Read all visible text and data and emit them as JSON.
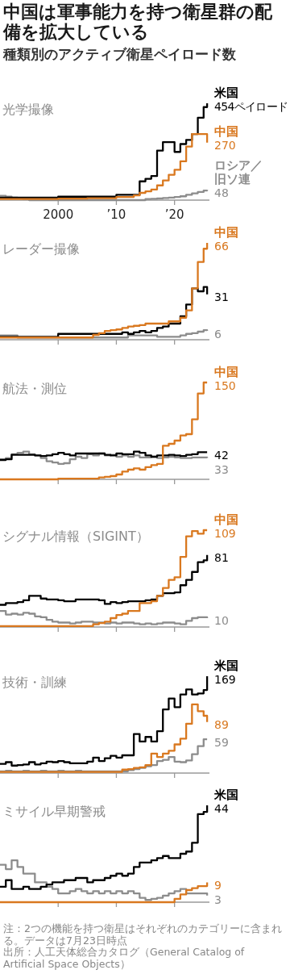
{
  "chart_data": [
    {
      "type": "other",
      "title": "中国は軍事能力を持つ衛星群の配備を拡大している",
      "subtitle": "種類別のアクティブ衛星ペイロード数"
    },
    {
      "type": "step",
      "title": "光学撮像",
      "x": [
        1990,
        1991,
        1992,
        1993,
        1994,
        1995,
        1996,
        1997,
        1998,
        1999,
        2000,
        2001,
        2002,
        2003,
        2004,
        2005,
        2006,
        2007,
        2008,
        2009,
        2010,
        2011,
        2012,
        2013,
        2014,
        2015,
        2016,
        2017,
        2018,
        2019,
        2020,
        2021,
        2022,
        2023,
        2024,
        2025,
        2025.6
      ],
      "xlim": [
        1990,
        2026
      ],
      "xticks": [
        2000,
        {
          "value": 2010,
          "label": "’10"
        },
        {
          "value": 2020,
          "label": "’20"
        }
      ],
      "tick_labels": "x",
      "series": [
        {
          "name": "ロシア／旧ソ連",
          "color": "#8c8c8c",
          "values": [
            20,
            16,
            12,
            8,
            4,
            0,
            0,
            0,
            0,
            0,
            0,
            0,
            0,
            0,
            0,
            0,
            0,
            0,
            0,
            0,
            0,
            0,
            0,
            0,
            0,
            5,
            6,
            8,
            10,
            12,
            15,
            18,
            25,
            32,
            38,
            45,
            48
          ],
          "value_labels": [
            null,
            null,
            null,
            null,
            null,
            null,
            null,
            null,
            null,
            null,
            null,
            null,
            null,
            null,
            null,
            null,
            null,
            null,
            null,
            null,
            null,
            null,
            null,
            null,
            null,
            null,
            null,
            null,
            null,
            null,
            null,
            null,
            null,
            null,
            null,
            null,
            "48"
          ]
        },
        {
          "name": "米国",
          "color": "#000000",
          "values": [
            12,
            12,
            12,
            12,
            12,
            12,
            12,
            12,
            12,
            12,
            16,
            16,
            16,
            16,
            16,
            16,
            16,
            16,
            16,
            16,
            25,
            25,
            25,
            25,
            88,
            100,
            113,
            232,
            272,
            272,
            226,
            263,
            282,
            310,
            386,
            436,
            454
          ],
          "value_labels": [
            null,
            null,
            null,
            null,
            null,
            null,
            null,
            null,
            null,
            null,
            null,
            null,
            null,
            null,
            null,
            null,
            null,
            null,
            null,
            null,
            null,
            null,
            null,
            null,
            null,
            null,
            null,
            null,
            null,
            null,
            null,
            null,
            null,
            null,
            null,
            null,
            "454ペイロード"
          ]
        },
        {
          "name": "中国",
          "color": "#d9781f",
          "values": [
            5,
            5,
            5,
            5,
            5,
            5,
            5,
            5,
            5,
            5,
            7,
            7,
            7,
            7,
            7,
            9,
            9,
            9,
            9,
            9,
            15,
            15,
            15,
            22,
            34,
            41,
            50,
            69,
            92,
            119,
            142,
            182,
            251,
            310,
            310,
            310,
            270
          ],
          "value_labels": [
            null,
            null,
            null,
            null,
            null,
            null,
            null,
            null,
            null,
            null,
            null,
            null,
            null,
            null,
            null,
            null,
            null,
            null,
            null,
            null,
            null,
            null,
            null,
            null,
            null,
            null,
            null,
            null,
            null,
            null,
            null,
            null,
            null,
            null,
            null,
            null,
            "270"
          ]
        }
      ]
    },
    {
      "type": "step",
      "title": "レーダー撮像",
      "x": [
        1990,
        1991,
        1992,
        1993,
        1994,
        1995,
        1996,
        1997,
        1998,
        1999,
        2000,
        2001,
        2002,
        2003,
        2004,
        2005,
        2006,
        2007,
        2008,
        2009,
        2010,
        2011,
        2012,
        2013,
        2014,
        2015,
        2016,
        2017,
        2018,
        2019,
        2020,
        2021,
        2022,
        2023,
        2024,
        2025,
        2025.6
      ],
      "xlim": [
        1990,
        2026
      ],
      "xticks": [
        {
          "value": 2000,
          "label": null
        },
        {
          "value": 2010,
          "label": null
        },
        {
          "value": 2020,
          "label": null
        }
      ],
      "tick_labels": false,
      "series": [
        {
          "color": "#8c8c8c",
          "values": [
            3,
            3,
            3,
            1.5,
            1.5,
            1.5,
            1.5,
            1.5,
            1.5,
            1.5,
            1.5,
            1.5,
            1.5,
            1.5,
            1.5,
            1.5,
            1.5,
            1.5,
            1.5,
            1.5,
            1.5,
            1.5,
            3,
            3,
            3,
            3,
            3,
            2,
            2,
            2,
            2,
            3,
            4,
            4.5,
            5.5,
            6.5,
            6
          ],
          "value_labels": [
            null,
            null,
            null,
            null,
            null,
            null,
            null,
            null,
            null,
            null,
            null,
            null,
            null,
            null,
            null,
            null,
            null,
            null,
            null,
            null,
            null,
            null,
            null,
            null,
            null,
            null,
            null,
            null,
            null,
            null,
            null,
            null,
            null,
            null,
            null,
            null,
            "6"
          ]
        },
        {
          "color": "#000000",
          "values": [
            2,
            2,
            2,
            2,
            2,
            2,
            2,
            2,
            2,
            2,
            4,
            4,
            4,
            4,
            4,
            4,
            4,
            4,
            4,
            4,
            4,
            5,
            4,
            5,
            6,
            5,
            6,
            8,
            9,
            11,
            11,
            16,
            24,
            35,
            33,
            36,
            31
          ],
          "value_labels": [
            null,
            null,
            null,
            null,
            null,
            null,
            null,
            null,
            null,
            null,
            null,
            null,
            null,
            null,
            null,
            null,
            null,
            null,
            null,
            null,
            null,
            null,
            null,
            null,
            null,
            null,
            null,
            null,
            null,
            null,
            null,
            null,
            null,
            null,
            null,
            null,
            "31"
          ]
        },
        {
          "name": "中国",
          "color": "#d9781f",
          "values": [
            1.5,
            1.5,
            1.5,
            1.5,
            1.5,
            1.5,
            1.5,
            1.5,
            1.5,
            1.5,
            1.5,
            1.5,
            1.5,
            1.5,
            1.5,
            1.5,
            3.3,
            4.5,
            6,
            6.5,
            7,
            8,
            9,
            9.5,
            10,
            11,
            11,
            11,
            11,
            12.5,
            12.5,
            15,
            20,
            35,
            53,
            62,
            66
          ],
          "value_labels": [
            null,
            null,
            null,
            null,
            null,
            null,
            null,
            null,
            null,
            null,
            null,
            null,
            null,
            null,
            null,
            null,
            null,
            null,
            null,
            null,
            null,
            null,
            null,
            null,
            null,
            null,
            null,
            null,
            null,
            null,
            null,
            null,
            null,
            null,
            null,
            null,
            "66"
          ]
        }
      ]
    },
    {
      "type": "step",
      "title": "航法・測位",
      "x": [
        1990,
        1991,
        1992,
        1993,
        1994,
        1995,
        1996,
        1997,
        1998,
        1999,
        2000,
        2001,
        2002,
        2003,
        2004,
        2005,
        2006,
        2007,
        2008,
        2009,
        2010,
        2011,
        2012,
        2013,
        2014,
        2015,
        2016,
        2017,
        2018,
        2019,
        2020,
        2021,
        2022,
        2023,
        2024,
        2025,
        2025.6
      ],
      "xlim": [
        1990,
        2026
      ],
      "xticks": [
        {
          "value": 2000,
          "label": null
        },
        {
          "value": 2010,
          "label": null
        },
        {
          "value": 2020,
          "label": null
        }
      ],
      "tick_labels": false,
      "series": [
        {
          "color": "#8c8c8c",
          "values": [
            31,
            33,
            39,
            41,
            43,
            39,
            37,
            33,
            28,
            26,
            24,
            25,
            31,
            35,
            33,
            39,
            37,
            40,
            37,
            38,
            35,
            37,
            35,
            37,
            34,
            34,
            35,
            33,
            34,
            35,
            34,
            33,
            33,
            34,
            34,
            34,
            33
          ],
          "value_labels": [
            null,
            null,
            null,
            null,
            null,
            null,
            null,
            null,
            null,
            null,
            null,
            null,
            null,
            null,
            null,
            null,
            null,
            null,
            null,
            null,
            null,
            null,
            null,
            null,
            null,
            null,
            null,
            null,
            null,
            null,
            null,
            null,
            null,
            null,
            null,
            null,
            "33"
          ]
        },
        {
          "color": "#000000",
          "values": [
            30,
            31,
            38,
            38,
            38,
            38,
            37,
            36,
            37,
            39,
            41,
            39,
            37,
            40,
            40,
            40,
            40,
            40,
            38,
            37,
            40,
            39,
            39,
            43,
            41,
            37,
            35,
            37,
            37,
            38,
            37,
            36,
            38,
            39,
            42,
            42,
            42
          ],
          "value_labels": [
            null,
            null,
            null,
            null,
            null,
            null,
            null,
            null,
            null,
            null,
            null,
            null,
            null,
            null,
            null,
            null,
            null,
            null,
            null,
            null,
            null,
            null,
            null,
            null,
            null,
            null,
            null,
            null,
            null,
            null,
            null,
            null,
            null,
            null,
            null,
            null,
            "42"
          ]
        },
        {
          "name": "中国",
          "color": "#d9781f",
          "values": [
            0,
            0,
            0,
            0,
            0,
            0,
            0,
            0,
            0,
            0,
            1,
            1,
            1,
            1,
            1,
            1,
            1,
            3,
            4,
            5,
            7.5,
            12,
            15,
            17,
            15,
            19,
            22,
            24,
            52,
            55,
            60,
            68,
            70,
            93,
            133,
            150,
            150
          ],
          "value_labels": [
            null,
            null,
            null,
            null,
            null,
            null,
            null,
            null,
            null,
            null,
            null,
            null,
            null,
            null,
            null,
            null,
            null,
            null,
            null,
            null,
            null,
            null,
            null,
            null,
            null,
            null,
            null,
            null,
            null,
            null,
            null,
            null,
            null,
            null,
            null,
            null,
            "150"
          ]
        }
      ]
    },
    {
      "type": "step",
      "title": "シグナル情報（SIGINT）",
      "x": [
        1990,
        1991,
        1992,
        1993,
        1994,
        1995,
        1996,
        1997,
        1998,
        1999,
        2000,
        2001,
        2002,
        2003,
        2004,
        2005,
        2006,
        2007,
        2008,
        2009,
        2010,
        2011,
        2012,
        2013,
        2014,
        2015,
        2016,
        2017,
        2018,
        2019,
        2020,
        2021,
        2022,
        2023,
        2024,
        2025,
        2025.6
      ],
      "xlim": [
        1990,
        2026
      ],
      "xticks": [
        {
          "value": 2000,
          "label": null
        },
        {
          "value": 2010,
          "label": null
        },
        {
          "value": 2020,
          "label": null
        }
      ],
      "tick_labels": false,
      "series": [
        {
          "color": "#8c8c8c",
          "values": [
            18,
            14,
            15,
            14,
            16,
            15,
            12,
            11,
            8,
            6,
            5,
            5,
            4,
            5,
            6,
            6,
            5,
            5,
            4,
            5,
            4,
            5,
            5,
            4,
            3,
            4,
            3,
            4,
            5,
            5,
            4,
            3,
            7,
            10,
            11,
            11,
            10
          ],
          "value_labels": [
            null,
            null,
            null,
            null,
            null,
            null,
            null,
            null,
            null,
            null,
            null,
            null,
            null,
            null,
            null,
            null,
            null,
            null,
            null,
            null,
            null,
            null,
            null,
            null,
            null,
            null,
            null,
            null,
            null,
            null,
            null,
            null,
            null,
            null,
            null,
            null,
            "10"
          ]
        },
        {
          "color": "#000000",
          "values": [
            25,
            27,
            27,
            28,
            30,
            35,
            35,
            32,
            31,
            31,
            30,
            29,
            29,
            31,
            31,
            31,
            31,
            30,
            26,
            28,
            27,
            28,
            29,
            29,
            29,
            30,
            31,
            35,
            38,
            38,
            39,
            47,
            53,
            62,
            73,
            75,
            81
          ],
          "value_labels": [
            null,
            null,
            null,
            null,
            null,
            null,
            null,
            null,
            null,
            null,
            null,
            null,
            null,
            null,
            null,
            null,
            null,
            null,
            null,
            null,
            null,
            null,
            null,
            null,
            null,
            null,
            null,
            null,
            null,
            null,
            null,
            null,
            null,
            null,
            null,
            null,
            "81"
          ]
        },
        {
          "name": "中国",
          "color": "#d9781f",
          "values": [
            1,
            1,
            1,
            1,
            1,
            1,
            1,
            1,
            1,
            1,
            1,
            1,
            1,
            1,
            1,
            1,
            3,
            4.5,
            6,
            10,
            13.5,
            15,
            18,
            18,
            27,
            27,
            29,
            35,
            44,
            53,
            56,
            79,
            102,
            108,
            105,
            109,
            109
          ],
          "value_labels": [
            null,
            null,
            null,
            null,
            null,
            null,
            null,
            null,
            null,
            null,
            null,
            null,
            null,
            null,
            null,
            null,
            null,
            null,
            null,
            null,
            null,
            null,
            null,
            null,
            null,
            null,
            null,
            null,
            null,
            null,
            null,
            null,
            null,
            null,
            null,
            null,
            "109"
          ]
        }
      ]
    },
    {
      "type": "step",
      "title": "技術・訓練",
      "x": [
        1990,
        1991,
        1992,
        1993,
        1994,
        1995,
        1996,
        1997,
        1998,
        1999,
        2000,
        2001,
        2002,
        2003,
        2004,
        2005,
        2006,
        2007,
        2008,
        2009,
        2010,
        2011,
        2012,
        2013,
        2014,
        2015,
        2016,
        2017,
        2018,
        2019,
        2020,
        2021,
        2022,
        2023,
        2024,
        2025,
        2025.6
      ],
      "xlim": [
        1990,
        2026
      ],
      "xticks": [
        {
          "value": 2000,
          "label": null
        },
        {
          "value": 2010,
          "label": null
        },
        {
          "value": 2020,
          "label": null
        }
      ],
      "tick_labels": false,
      "series": [
        {
          "color": "#8c8c8c",
          "values": [
            3,
            4,
            3,
            3,
            4,
            3,
            3,
            4,
            3,
            3,
            4,
            3,
            3,
            4,
            3,
            3,
            3,
            3,
            3,
            3,
            3,
            3,
            5,
            7,
            9,
            12,
            14,
            21,
            23,
            28,
            20,
            19,
            22,
            33,
            47,
            59,
            59
          ],
          "value_labels": [
            null,
            null,
            null,
            null,
            null,
            null,
            null,
            null,
            null,
            null,
            null,
            null,
            null,
            null,
            null,
            null,
            null,
            null,
            null,
            null,
            null,
            null,
            null,
            null,
            null,
            null,
            null,
            null,
            null,
            null,
            null,
            null,
            null,
            null,
            null,
            null,
            "59"
          ]
        },
        {
          "color": "#d9781f",
          "values": [
            2,
            2,
            2,
            2,
            2,
            2,
            2,
            2,
            2,
            2,
            2,
            2,
            2,
            2,
            2,
            2,
            2,
            2,
            2,
            2,
            2,
            6,
            7,
            9,
            10,
            14,
            34,
            28,
            34,
            39,
            50,
            60,
            86,
            120,
            108,
            100,
            89
          ],
          "value_labels": [
            null,
            null,
            null,
            null,
            null,
            null,
            null,
            null,
            null,
            null,
            null,
            null,
            null,
            null,
            null,
            null,
            null,
            null,
            null,
            null,
            null,
            null,
            null,
            null,
            null,
            null,
            null,
            null,
            null,
            null,
            null,
            null,
            null,
            null,
            null,
            null,
            "89"
          ]
        },
        {
          "name": "米国",
          "color": "#000000",
          "values": [
            16,
            19,
            13,
            14,
            15,
            19,
            15,
            17,
            20,
            19,
            21,
            19,
            17,
            17,
            17,
            20,
            27,
            21,
            26,
            30,
            27,
            31,
            31,
            68,
            55,
            63,
            55,
            73,
            111,
            130,
            115,
            137,
            146,
            137,
            139,
            145,
            169
          ],
          "value_labels": [
            null,
            null,
            null,
            null,
            null,
            null,
            null,
            null,
            null,
            null,
            null,
            null,
            null,
            null,
            null,
            null,
            null,
            null,
            null,
            null,
            null,
            null,
            null,
            null,
            null,
            null,
            null,
            null,
            null,
            null,
            null,
            null,
            null,
            null,
            null,
            null,
            "169"
          ]
        }
      ]
    },
    {
      "type": "step",
      "title": "ミサイル早期警戒",
      "x": [
        1990,
        1991,
        1992,
        1993,
        1994,
        1995,
        1996,
        1997,
        1998,
        1999,
        2000,
        2001,
        2002,
        2003,
        2004,
        2005,
        2006,
        2007,
        2008,
        2009,
        2010,
        2011,
        2012,
        2013,
        2014,
        2015,
        2016,
        2017,
        2018,
        2019,
        2020,
        2021,
        2022,
        2023,
        2024,
        2025,
        2025.6
      ],
      "xlim": [
        1990,
        2026
      ],
      "xticks": [
        {
          "value": 2000,
          "label": null
        },
        {
          "value": 2010,
          "label": null
        },
        {
          "value": 2020,
          "label": null
        }
      ],
      "tick_labels": false,
      "series": [
        {
          "color": "#8c8c8c",
          "values": [
            17,
            15,
            19,
            16,
            13,
            13,
            9,
            9,
            7,
            6,
            4,
            4,
            5,
            6,
            5,
            4,
            5,
            4,
            5,
            4,
            5,
            4,
            5,
            4,
            2,
            1,
            1.5,
            2,
            3,
            4,
            5,
            6,
            4,
            4,
            4,
            4,
            3
          ],
          "value_labels": [
            null,
            null,
            null,
            null,
            null,
            null,
            null,
            null,
            null,
            null,
            null,
            null,
            null,
            null,
            null,
            null,
            null,
            null,
            null,
            null,
            null,
            null,
            null,
            null,
            null,
            null,
            null,
            null,
            null,
            null,
            null,
            null,
            null,
            null,
            null,
            null,
            "3"
          ]
        },
        {
          "color": "#d9781f",
          "values": [
            0,
            0,
            0,
            0,
            0,
            0,
            0,
            0,
            0,
            0,
            0,
            0,
            0,
            0,
            0,
            0,
            0,
            0,
            0,
            0,
            0,
            0,
            0,
            0,
            0,
            0,
            0,
            0,
            0,
            0,
            1.5,
            3.5,
            5.5,
            6.4,
            7.3,
            7.3,
            9
          ],
          "value_labels": [
            null,
            null,
            null,
            null,
            null,
            null,
            null,
            null,
            null,
            null,
            null,
            null,
            null,
            null,
            null,
            null,
            null,
            null,
            null,
            null,
            null,
            null,
            null,
            null,
            null,
            null,
            null,
            null,
            null,
            null,
            null,
            null,
            null,
            null,
            null,
            null,
            "9"
          ]
        },
        {
          "name": "米国",
          "color": "#000000",
          "values": [
            7,
            10,
            6,
            6,
            7,
            6,
            6,
            7,
            8,
            9,
            9,
            10,
            10,
            11,
            11,
            9,
            10,
            10,
            11,
            12,
            13,
            12,
            13,
            16,
            18,
            18,
            19,
            20,
            21,
            20,
            20,
            22,
            23,
            27,
            40,
            41,
            44
          ],
          "value_labels": [
            null,
            null,
            null,
            null,
            null,
            null,
            null,
            null,
            null,
            null,
            null,
            null,
            null,
            null,
            null,
            null,
            null,
            null,
            null,
            null,
            null,
            null,
            null,
            null,
            null,
            null,
            null,
            null,
            null,
            null,
            null,
            null,
            null,
            null,
            null,
            null,
            "44"
          ]
        }
      ],
      "annotations": [
        "注：2つの機能を持つ衛星はそれぞれのカテゴリーに含まれる。データは7月23日時点",
        "出所：人工天体総合カタログ（General Catalog of Artificial Space Objects）"
      ]
    }
  ]
}
